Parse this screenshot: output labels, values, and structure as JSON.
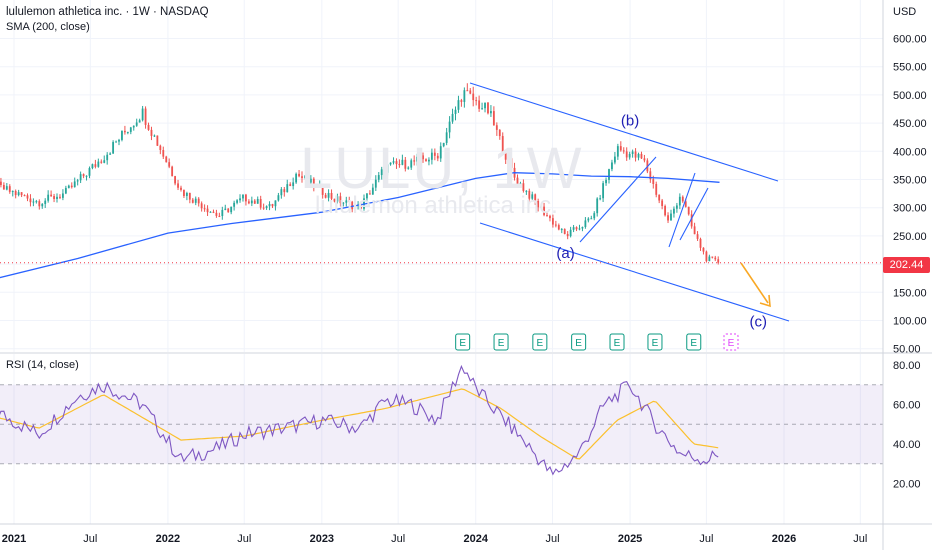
{
  "header": {
    "title": "lululemon athletica inc. · 1W · NASDAQ",
    "sma_label": "SMA (200, close)",
    "currency": "USD",
    "last_price": "202.44"
  },
  "watermark": {
    "symbol": "LULU, 1W",
    "name": "lululemon athletica inc."
  },
  "rsi_pane": {
    "label": "RSI (14, close)"
  },
  "wave_labels": [
    "(a)",
    "(b)",
    "(c)"
  ],
  "earnings_marker": "E",
  "colors": {
    "up": "#26a69a",
    "down": "#ef5350",
    "trendline": "#2962ff",
    "sma": "#2962ff",
    "rsi": "#7e57c2",
    "rsi_ma": "#fbc02d",
    "arrow": "#f9a825",
    "price_line": "#f23645",
    "earnings": "#089981"
  },
  "chart_data": [
    {
      "type": "line",
      "title": "lululemon athletica inc. · 1W · NASDAQ",
      "x_unit": "date",
      "ylabel": "USD",
      "ylim": [
        50,
        620
      ],
      "yticks": [
        50,
        100,
        150,
        200,
        250,
        300,
        350,
        400,
        450,
        500,
        550,
        600
      ],
      "ytick_labels": [
        "50.00",
        "100.00",
        "150.00",
        "200.00",
        "250.00",
        "300.00",
        "350.00",
        "400.00",
        "450.00",
        "500.00",
        "550.00",
        "600.00"
      ],
      "xticks": [
        {
          "date": "2021-01",
          "label": "2021"
        },
        {
          "date": "2021-07",
          "label": "Jul"
        },
        {
          "date": "2022-01",
          "label": "2022"
        },
        {
          "date": "2022-07",
          "label": "Jul"
        },
        {
          "date": "2023-01",
          "label": "2023"
        },
        {
          "date": "2023-07",
          "label": "Jul"
        },
        {
          "date": "2024-01",
          "label": "2024"
        },
        {
          "date": "2024-07",
          "label": "Jul"
        },
        {
          "date": "2025-01",
          "label": "2025"
        },
        {
          "date": "2025-07",
          "label": "Jul"
        },
        {
          "date": "2026-01",
          "label": "2026"
        },
        {
          "date": "2026-07",
          "label": "Jul"
        }
      ],
      "series": [
        {
          "name": "Close",
          "x": [
            "2020-09",
            "2020-12",
            "2021-03",
            "2021-05",
            "2021-08",
            "2021-11",
            "2022-02",
            "2022-05",
            "2022-07",
            "2022-09",
            "2022-11",
            "2023-02",
            "2023-04",
            "2023-06",
            "2023-08",
            "2023-10",
            "2023-12",
            "2024-02",
            "2024-04",
            "2024-06",
            "2024-08",
            "2024-10",
            "2024-12",
            "2025-02",
            "2025-04",
            "2025-05",
            "2025-06",
            "2025-07",
            "2025-08"
          ],
          "values": [
            372,
            335,
            310,
            325,
            390,
            470,
            330,
            285,
            318,
            300,
            360,
            315,
            300,
            372,
            380,
            392,
            505,
            470,
            355,
            300,
            250,
            280,
            405,
            385,
            275,
            325,
            255,
            210,
            202.44
          ]
        },
        {
          "name": "SMA (200, close)",
          "x": [
            "2020-09",
            "2021-06",
            "2022-01",
            "2022-06",
            "2023-01",
            "2023-07",
            "2024-01",
            "2024-04",
            "2024-07",
            "2024-10",
            "2025-01",
            "2025-04",
            "2025-08"
          ],
          "values": [
            160,
            210,
            255,
            272,
            292,
            318,
            352,
            362,
            360,
            356,
            355,
            352,
            345
          ]
        }
      ],
      "annotations": {
        "wave_a": {
          "date": "2024-08",
          "value": 220,
          "text": "(a)"
        },
        "wave_b": {
          "date": "2025-01",
          "value": 455,
          "text": "(b)"
        },
        "wave_c": {
          "date": "2025-11",
          "value": 98,
          "text": "(c)"
        },
        "earnings_dates": [
          "2023-12",
          "2024-03",
          "2024-06",
          "2024-09",
          "2024-12",
          "2025-03",
          "2025-06"
        ]
      }
    },
    {
      "type": "line",
      "title": "RSI (14, close)",
      "x_unit": "date",
      "ylim": [
        0,
        85
      ],
      "yticks": [
        20,
        40,
        60,
        80
      ],
      "ytick_labels": [
        "20.00",
        "40.00",
        "60.00",
        "80.00"
      ],
      "bands": [
        30,
        50,
        70
      ],
      "series": [
        {
          "name": "RSI",
          "x": [
            "2020-09",
            "2020-12",
            "2021-03",
            "2021-06",
            "2021-08",
            "2021-11",
            "2022-02",
            "2022-05",
            "2022-07",
            "2022-10",
            "2023-01",
            "2023-04",
            "2023-06",
            "2023-08",
            "2023-10",
            "2023-12",
            "2024-01",
            "2024-03",
            "2024-05",
            "2024-07",
            "2024-09",
            "2024-11",
            "2025-01",
            "2025-03",
            "2025-05",
            "2025-07",
            "2025-08"
          ],
          "values": [
            58,
            55,
            45,
            64,
            70,
            60,
            32,
            38,
            45,
            48,
            52,
            48,
            62,
            60,
            52,
            80,
            68,
            54,
            40,
            24,
            35,
            60,
            70,
            50,
            35,
            32,
            35
          ]
        },
        {
          "name": "RSI-based MA",
          "x": [
            "2020-09",
            "2021-03",
            "2021-08",
            "2022-02",
            "2022-07",
            "2023-01",
            "2023-06",
            "2023-12",
            "2024-03",
            "2024-06",
            "2024-09",
            "2024-12",
            "2025-03",
            "2025-06",
            "2025-08"
          ],
          "values": [
            58,
            48,
            65,
            42,
            44,
            52,
            58,
            68,
            58,
            44,
            32,
            52,
            62,
            40,
            38
          ]
        }
      ]
    }
  ]
}
